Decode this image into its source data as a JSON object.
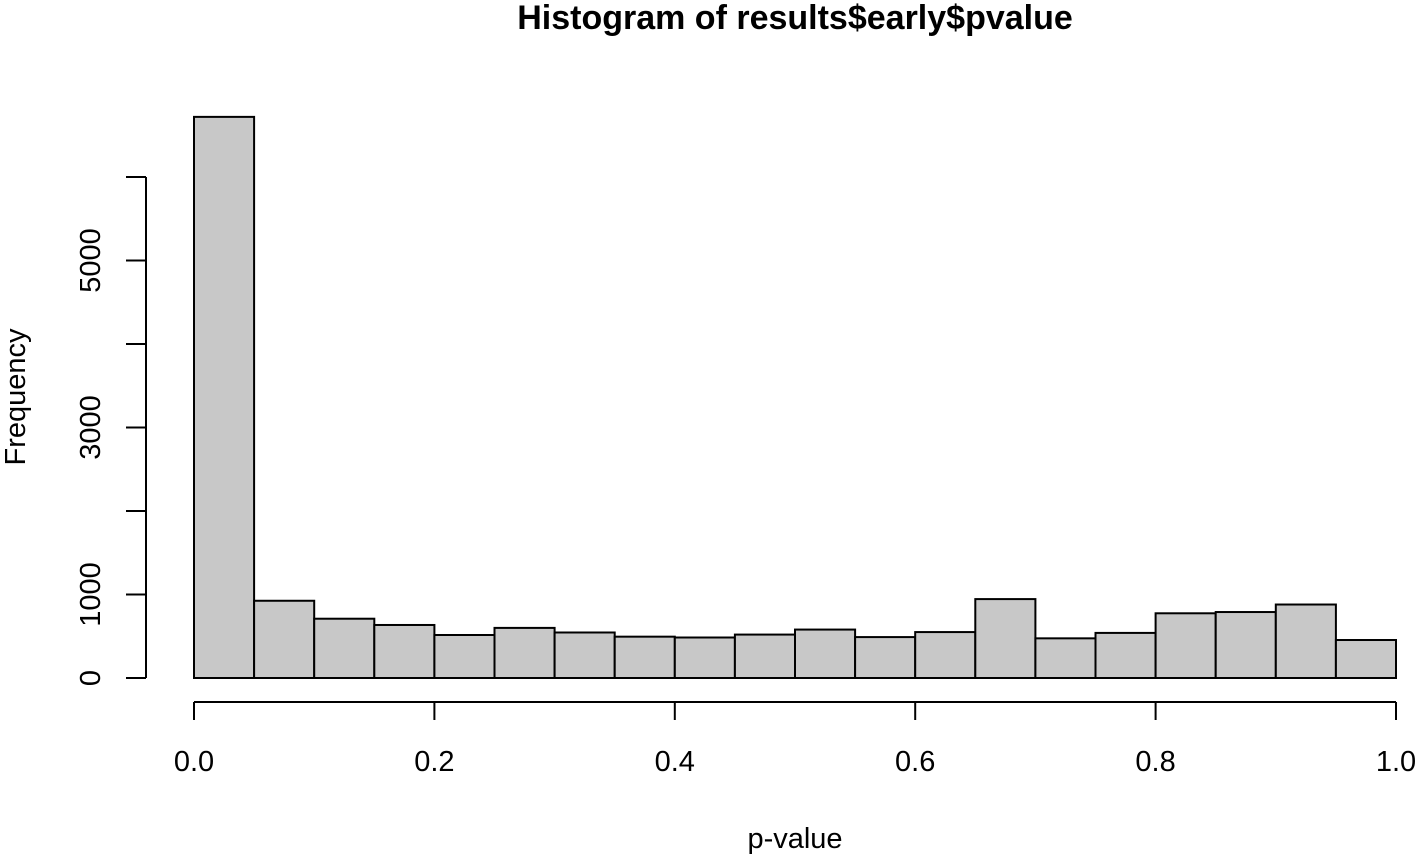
{
  "chart_data": {
    "type": "bar",
    "title": "Histogram of results$early$pvalue",
    "xlabel": "p-value",
    "ylabel": "Frequency",
    "xlim": [
      0,
      1
    ],
    "ylim": [
      0,
      6700
    ],
    "bin_width": 0.05,
    "bins": [
      {
        "x0": 0.0,
        "x1": 0.05,
        "count": 6720
      },
      {
        "x0": 0.05,
        "x1": 0.1,
        "count": 925
      },
      {
        "x0": 0.1,
        "x1": 0.15,
        "count": 710
      },
      {
        "x0": 0.15,
        "x1": 0.2,
        "count": 635
      },
      {
        "x0": 0.2,
        "x1": 0.25,
        "count": 515
      },
      {
        "x0": 0.25,
        "x1": 0.3,
        "count": 600
      },
      {
        "x0": 0.3,
        "x1": 0.35,
        "count": 545
      },
      {
        "x0": 0.35,
        "x1": 0.4,
        "count": 495
      },
      {
        "x0": 0.4,
        "x1": 0.45,
        "count": 485
      },
      {
        "x0": 0.45,
        "x1": 0.5,
        "count": 520
      },
      {
        "x0": 0.5,
        "x1": 0.55,
        "count": 580
      },
      {
        "x0": 0.55,
        "x1": 0.6,
        "count": 490
      },
      {
        "x0": 0.6,
        "x1": 0.65,
        "count": 550
      },
      {
        "x0": 0.65,
        "x1": 0.7,
        "count": 945
      },
      {
        "x0": 0.7,
        "x1": 0.75,
        "count": 475
      },
      {
        "x0": 0.75,
        "x1": 0.8,
        "count": 540
      },
      {
        "x0": 0.8,
        "x1": 0.85,
        "count": 775
      },
      {
        "x0": 0.85,
        "x1": 0.9,
        "count": 790
      },
      {
        "x0": 0.9,
        "x1": 0.95,
        "count": 880
      },
      {
        "x0": 0.95,
        "x1": 1.0,
        "count": 455
      }
    ],
    "x_ticks": [
      {
        "value": 0.0,
        "label": "0.0"
      },
      {
        "value": 0.2,
        "label": "0.2"
      },
      {
        "value": 0.4,
        "label": "0.4"
      },
      {
        "value": 0.6,
        "label": "0.6"
      },
      {
        "value": 0.8,
        "label": "0.8"
      },
      {
        "value": 1.0,
        "label": "1.0"
      }
    ],
    "y_ticks": [
      {
        "value": 0,
        "label": "0"
      },
      {
        "value": 1000,
        "label": "1000"
      },
      {
        "value": 2000,
        "label": ""
      },
      {
        "value": 3000,
        "label": "3000"
      },
      {
        "value": 4000,
        "label": ""
      },
      {
        "value": 5000,
        "label": "5000"
      },
      {
        "value": 6000,
        "label": ""
      }
    ],
    "bar_fill": "#c8c8c8",
    "bar_stroke": "#000000",
    "grid": false,
    "legend": "none"
  }
}
